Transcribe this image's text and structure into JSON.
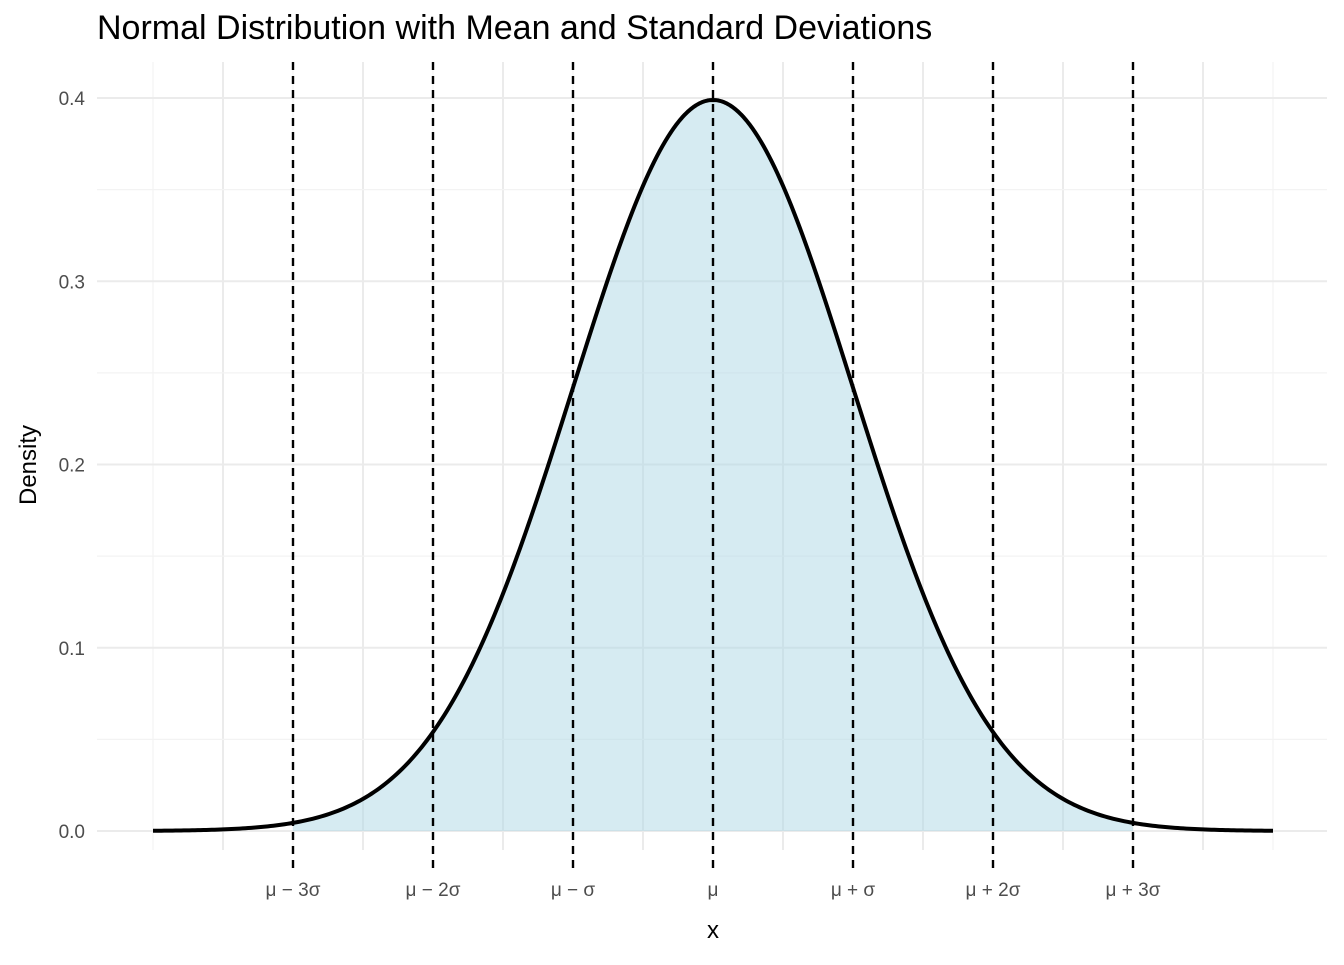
{
  "chart_data": {
    "type": "area",
    "title": "Normal Distribution with Mean and Standard Deviations",
    "xlabel": "x",
    "ylabel": "Density",
    "distribution": {
      "mean": 0,
      "sd": 1
    },
    "x": [
      -4,
      -3.5,
      -3,
      -2.5,
      -2,
      -1.5,
      -1,
      -0.5,
      0,
      0.5,
      1,
      1.5,
      2,
      2.5,
      3,
      3.5,
      4
    ],
    "y": [
      0.0001,
      0.0009,
      0.0044,
      0.0175,
      0.054,
      0.1295,
      0.242,
      0.3521,
      0.3989,
      0.3521,
      0.242,
      0.1295,
      0.054,
      0.0175,
      0.0044,
      0.0009,
      0.0001
    ],
    "xlim": [
      -4,
      4
    ],
    "ylim": [
      0,
      0.4
    ],
    "x_ticks": [
      {
        "value": -3,
        "label": "μ − 3σ"
      },
      {
        "value": -2,
        "label": "μ − 2σ"
      },
      {
        "value": -1,
        "label": "μ − σ"
      },
      {
        "value": 0,
        "label": "μ"
      },
      {
        "value": 1,
        "label": "μ + σ"
      },
      {
        "value": 2,
        "label": "μ + 2σ"
      },
      {
        "value": 3,
        "label": "μ + 3σ"
      }
    ],
    "y_ticks": [
      {
        "value": 0,
        "label": "0.0"
      },
      {
        "value": 0.1,
        "label": "0.1"
      },
      {
        "value": 0.2,
        "label": "0.2"
      },
      {
        "value": 0.3,
        "label": "0.3"
      },
      {
        "value": 0.4,
        "label": "0.4"
      }
    ],
    "reference_lines_x": [
      -3,
      -2,
      -1,
      0,
      1,
      2,
      3
    ],
    "reference_line_style": "dashed",
    "grid": true,
    "legend": "none",
    "colors": {
      "fill": "#add8e6",
      "curve": "#000000",
      "reference_lines": "#000000",
      "grid": "#ebebeb"
    }
  }
}
